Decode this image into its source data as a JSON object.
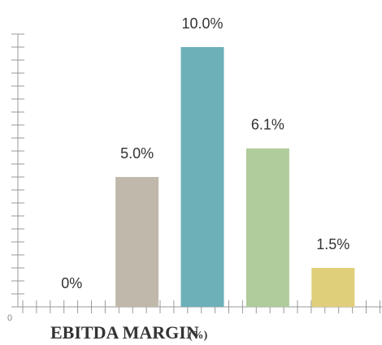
{
  "chart_data": {
    "type": "bar",
    "title": "EBITDA MARGIN",
    "unit_label": "(%)",
    "categories": [
      null,
      null,
      null,
      null,
      null
    ],
    "values": [
      0,
      5.0,
      10.0,
      6.1,
      1.5
    ],
    "value_labels": [
      "0%",
      "5.0%",
      "10.0%",
      "6.1%",
      "1.5%"
    ],
    "colors": [
      "#c0b9ab",
      "#c0b9ab",
      "#6eb0b8",
      "#b0cb9c",
      "#e0cf7a"
    ],
    "ylim": [
      0,
      10.5
    ],
    "yticks": [
      0
    ],
    "yminor_ticks": [
      0.5,
      1,
      1.5,
      2,
      2.5,
      3,
      3.5,
      4,
      4.5,
      5,
      5.5,
      6,
      6.5,
      7,
      7.5,
      8,
      8.5,
      9,
      9.5,
      10,
      10.5
    ]
  }
}
